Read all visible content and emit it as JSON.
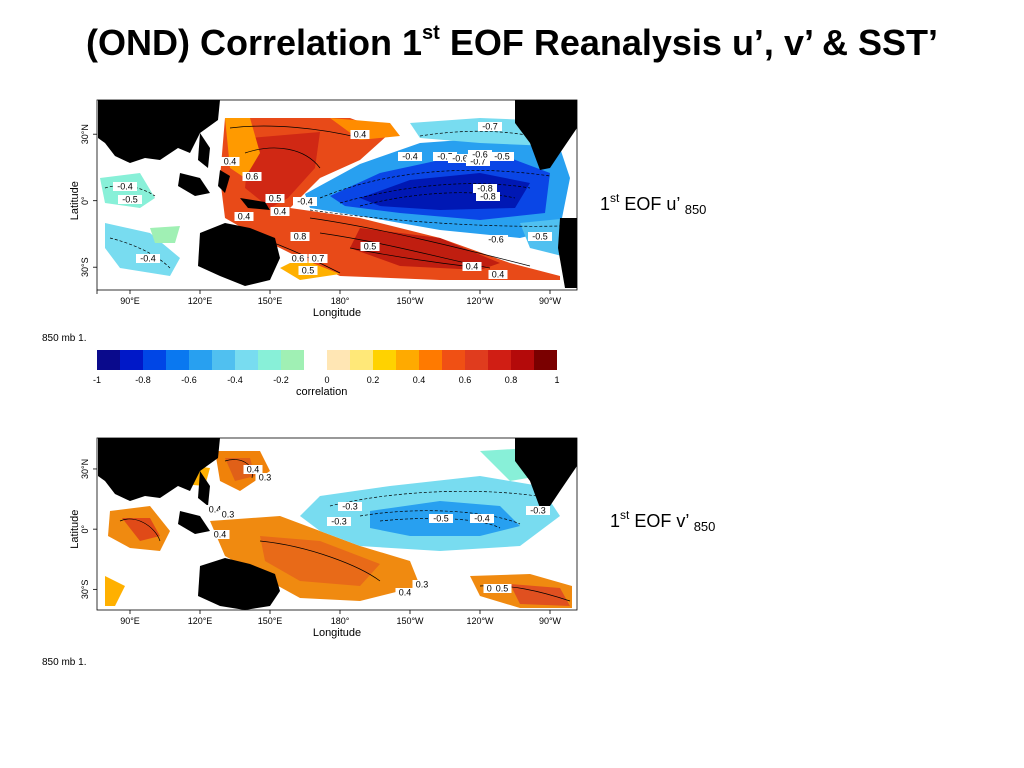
{
  "title": {
    "prefix": "(OND) Correlation 1",
    "sup": "st",
    "suffix": " EOF Reanalysis u’, v’ & SST’"
  },
  "panels": [
    {
      "id": "u",
      "label": {
        "num": "1",
        "sup": "st",
        "text": " EOF u’ ",
        "sub": "850"
      },
      "caption": "850 mb 1.",
      "ylabel": "Latitude",
      "xlabel": "Longitude",
      "yticks": [
        "30°N",
        "0°",
        "30°S"
      ],
      "xticks": [
        "90°E",
        "120°E",
        "150°E",
        "180°",
        "150°W",
        "120°W",
        "90°W"
      ],
      "contour_labels": [
        "0.4",
        "0.4",
        "0.6",
        "0.5",
        "0.4",
        "0.4",
        "0.8",
        "0.6",
        "0.5",
        "0.7",
        "0.5",
        "0.4",
        "0.4",
        "-0.4",
        "-0.5",
        "-0.4",
        "-0.5",
        "-0.6",
        "-0.7",
        "-0.6",
        "-0.5",
        "-0.7",
        "-0.8",
        "-0.8",
        "-0.6",
        "-0.5",
        "-0.4",
        "-0.4"
      ]
    },
    {
      "id": "v",
      "label": {
        "num": "1",
        "sup": "st",
        "text": " EOF v’ ",
        "sub": "850"
      },
      "caption": "850 mb 1.",
      "ylabel": "Latitude",
      "xlabel": "Longitude",
      "yticks": [
        "30°N",
        "0°",
        "30°S"
      ],
      "xticks": [
        "90°E",
        "120°E",
        "150°E",
        "180°",
        "150°W",
        "120°W",
        "90°W"
      ],
      "contour_labels": [
        "0.4",
        "0.3",
        "0.4",
        "0.3",
        "0.4",
        "-0.3",
        "-0.3",
        "-0.5",
        "-0.4",
        "-0.3",
        "0.3",
        "0.4",
        "0.4",
        "0.5"
      ]
    }
  ],
  "colorbar": {
    "title": "correlation",
    "ticks": [
      "-1",
      "-0.8",
      "-0.6",
      "-0.4",
      "-0.2",
      "0",
      "0.2",
      "0.4",
      "0.6",
      "0.8",
      "1"
    ],
    "colors": [
      "#0a0a8c",
      "#0018c8",
      "#0046e6",
      "#0a78f0",
      "#28a0f0",
      "#50c0f0",
      "#78dcf0",
      "#88f0d8",
      "#a0f0b4",
      "#ffffff",
      "#ffe6b4",
      "#ffe878",
      "#ffd200",
      "#ffaa00",
      "#ff7a00",
      "#f05014",
      "#e03c1e",
      "#d01e14",
      "#b40a0a",
      "#7a0000"
    ]
  },
  "colors": {
    "land": "#000000",
    "ocean": "#ffffff"
  }
}
